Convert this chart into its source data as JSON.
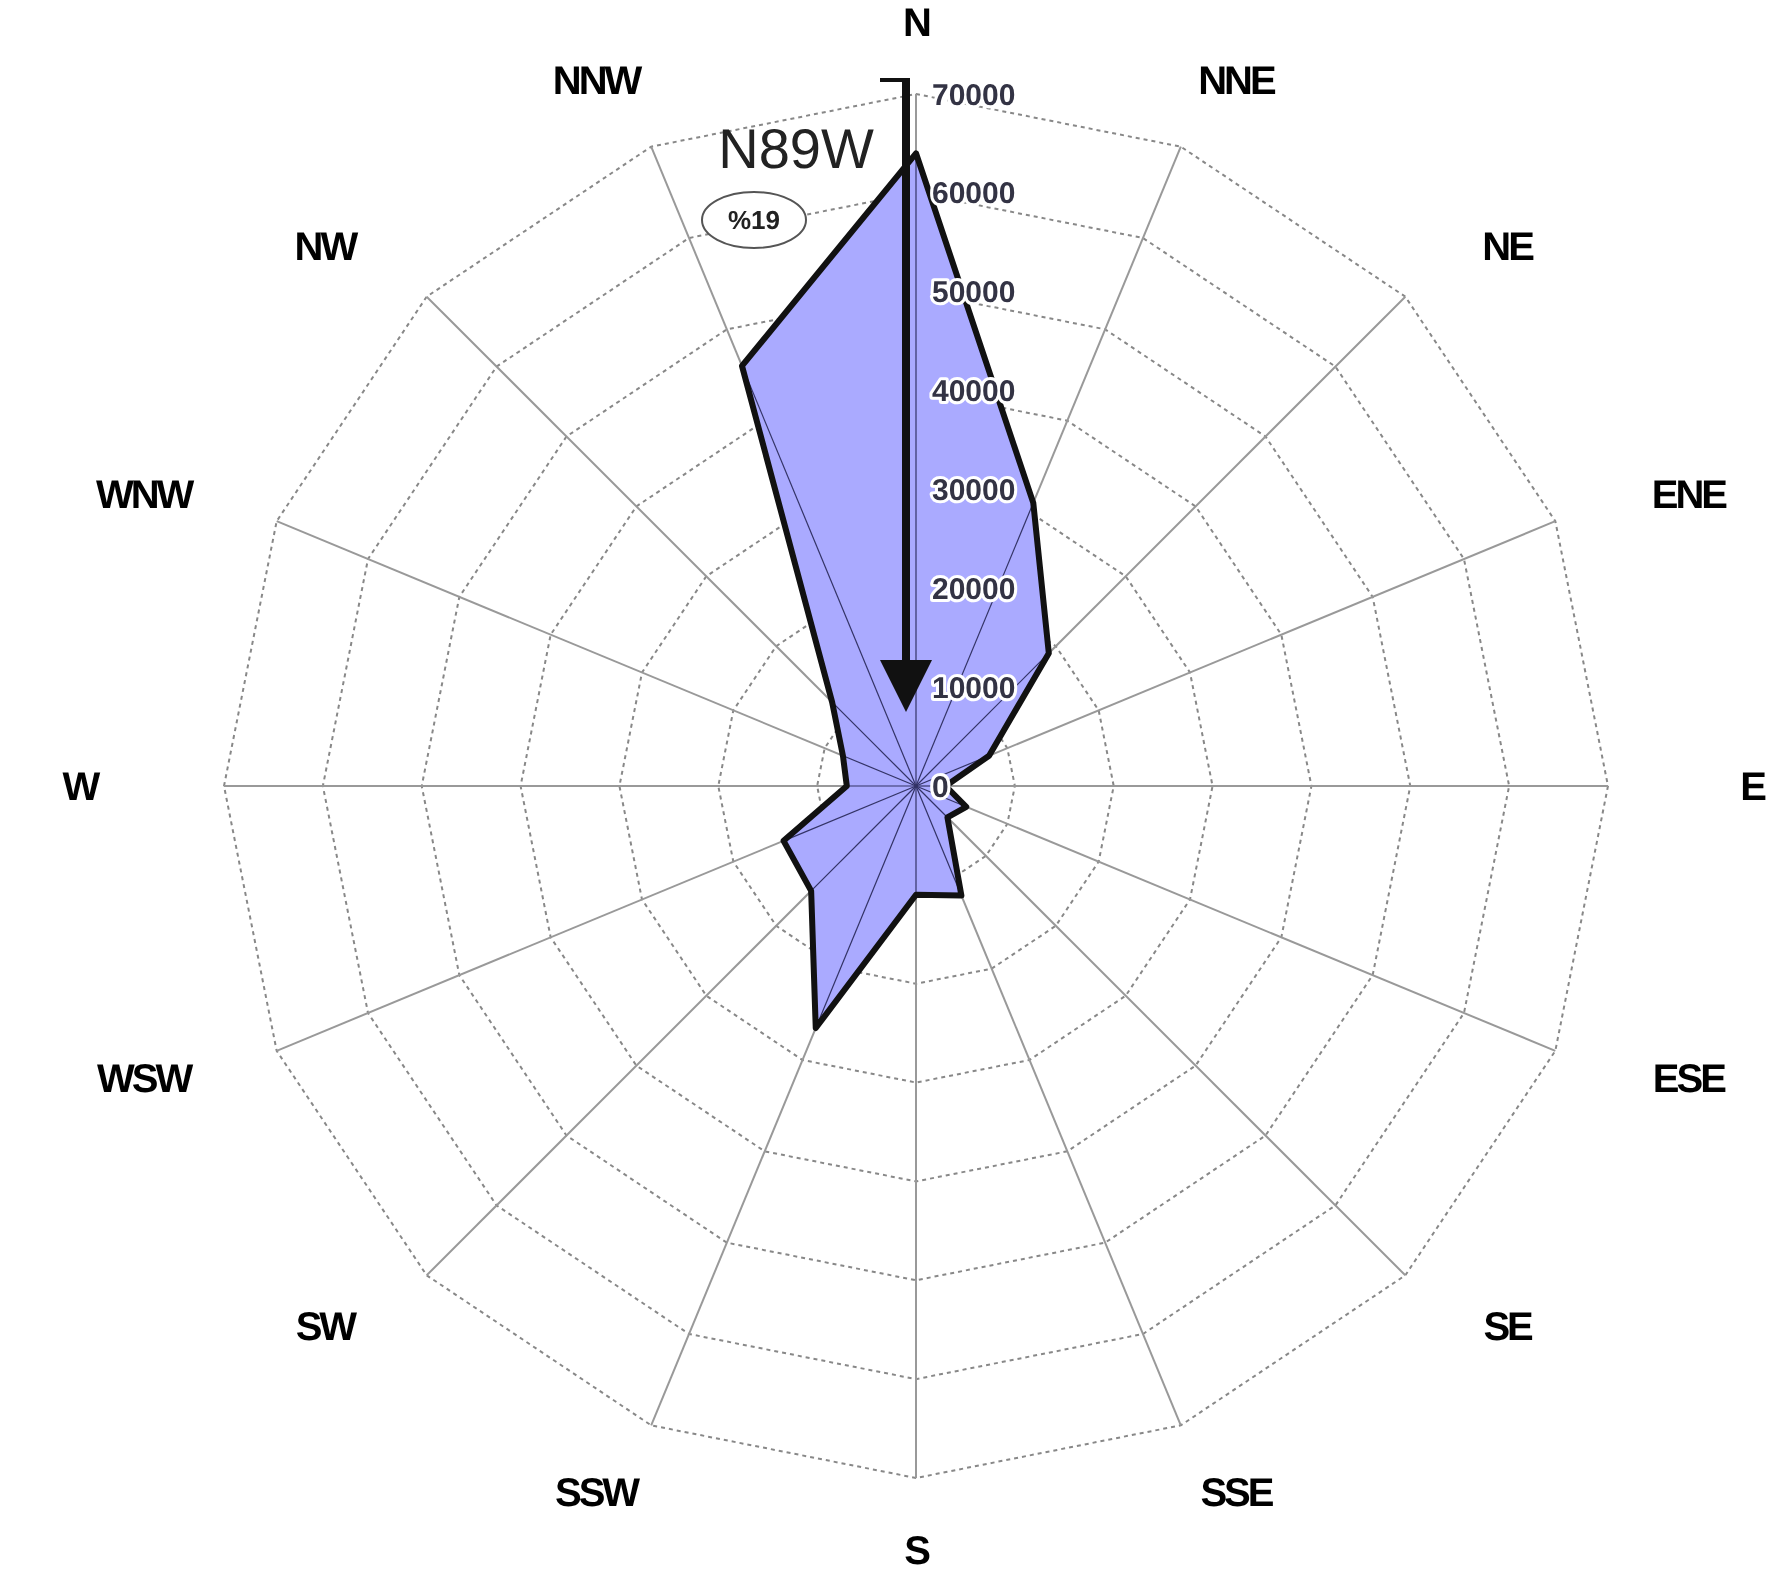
{
  "chart_data": {
    "type": "radar",
    "categories": [
      "N",
      "NNE",
      "NE",
      "ENE",
      "E",
      "ESE",
      "SE",
      "SSE",
      "S",
      "SSW",
      "SW",
      "WSW",
      "W",
      "WNW",
      "NW",
      "NNW"
    ],
    "series": [
      {
        "color": "#aaaaff",
        "values": [
          64000,
          31000,
          19000,
          8000,
          3000,
          5500,
          4500,
          12000,
          11000,
          26500,
          15000,
          14500,
          7000,
          8000,
          12000,
          46000
        ]
      }
    ],
    "ylim": [
      0,
      70000
    ],
    "yticks": [
      0,
      10000,
      20000,
      30000,
      40000,
      50000,
      60000,
      70000
    ],
    "grid": true,
    "annotations": [
      "N89W",
      "%19"
    ]
  }
}
